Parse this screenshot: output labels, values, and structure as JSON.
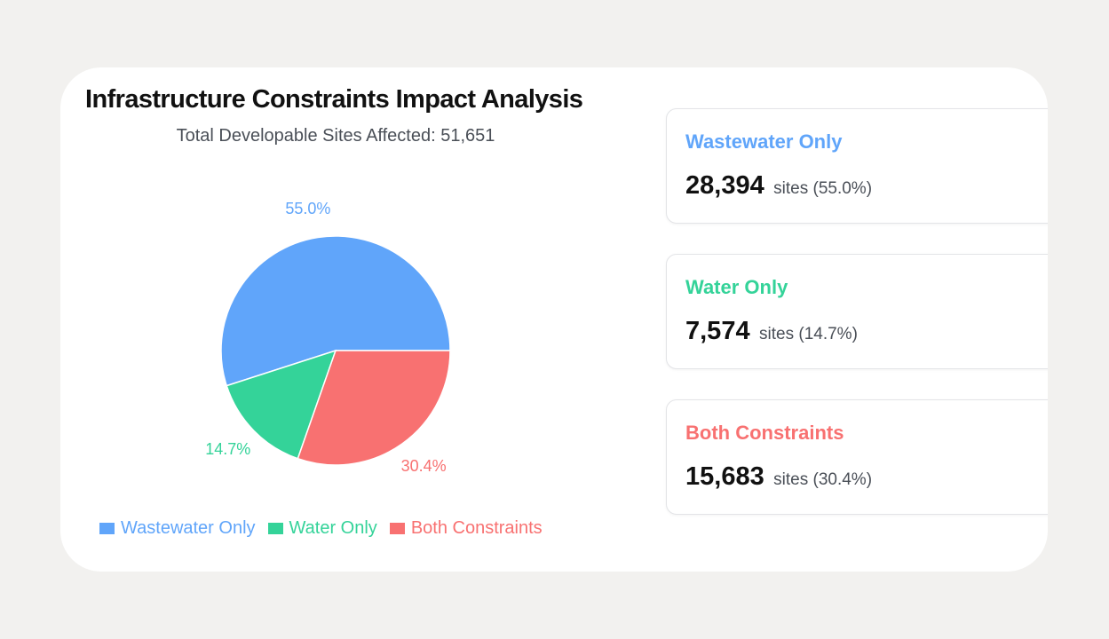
{
  "chart_data": {
    "type": "pie",
    "title": "Infrastructure Constraints Impact Analysis",
    "subtitle": "Total Developable Sites Affected: 51,651",
    "categories": [
      "Wastewater Only",
      "Water Only",
      "Both Constraints"
    ],
    "values": [
      28394,
      7574,
      15683
    ],
    "percent_labels": [
      "55.0%",
      "14.7%",
      "30.4%"
    ],
    "colors": [
      "#60a5fa",
      "#34d399",
      "#f87171"
    ],
    "legend_position": "bottom"
  },
  "stats": [
    {
      "label": "Wastewater Only",
      "value": "28,394",
      "unit": "sites (55.0%)",
      "color": "#60a5fa"
    },
    {
      "label": "Water Only",
      "value": "7,574",
      "unit": "sites (14.7%)",
      "color": "#34d399"
    },
    {
      "label": "Both Constraints",
      "value": "15,683",
      "unit": "sites (30.4%)",
      "color": "#f87171"
    }
  ]
}
